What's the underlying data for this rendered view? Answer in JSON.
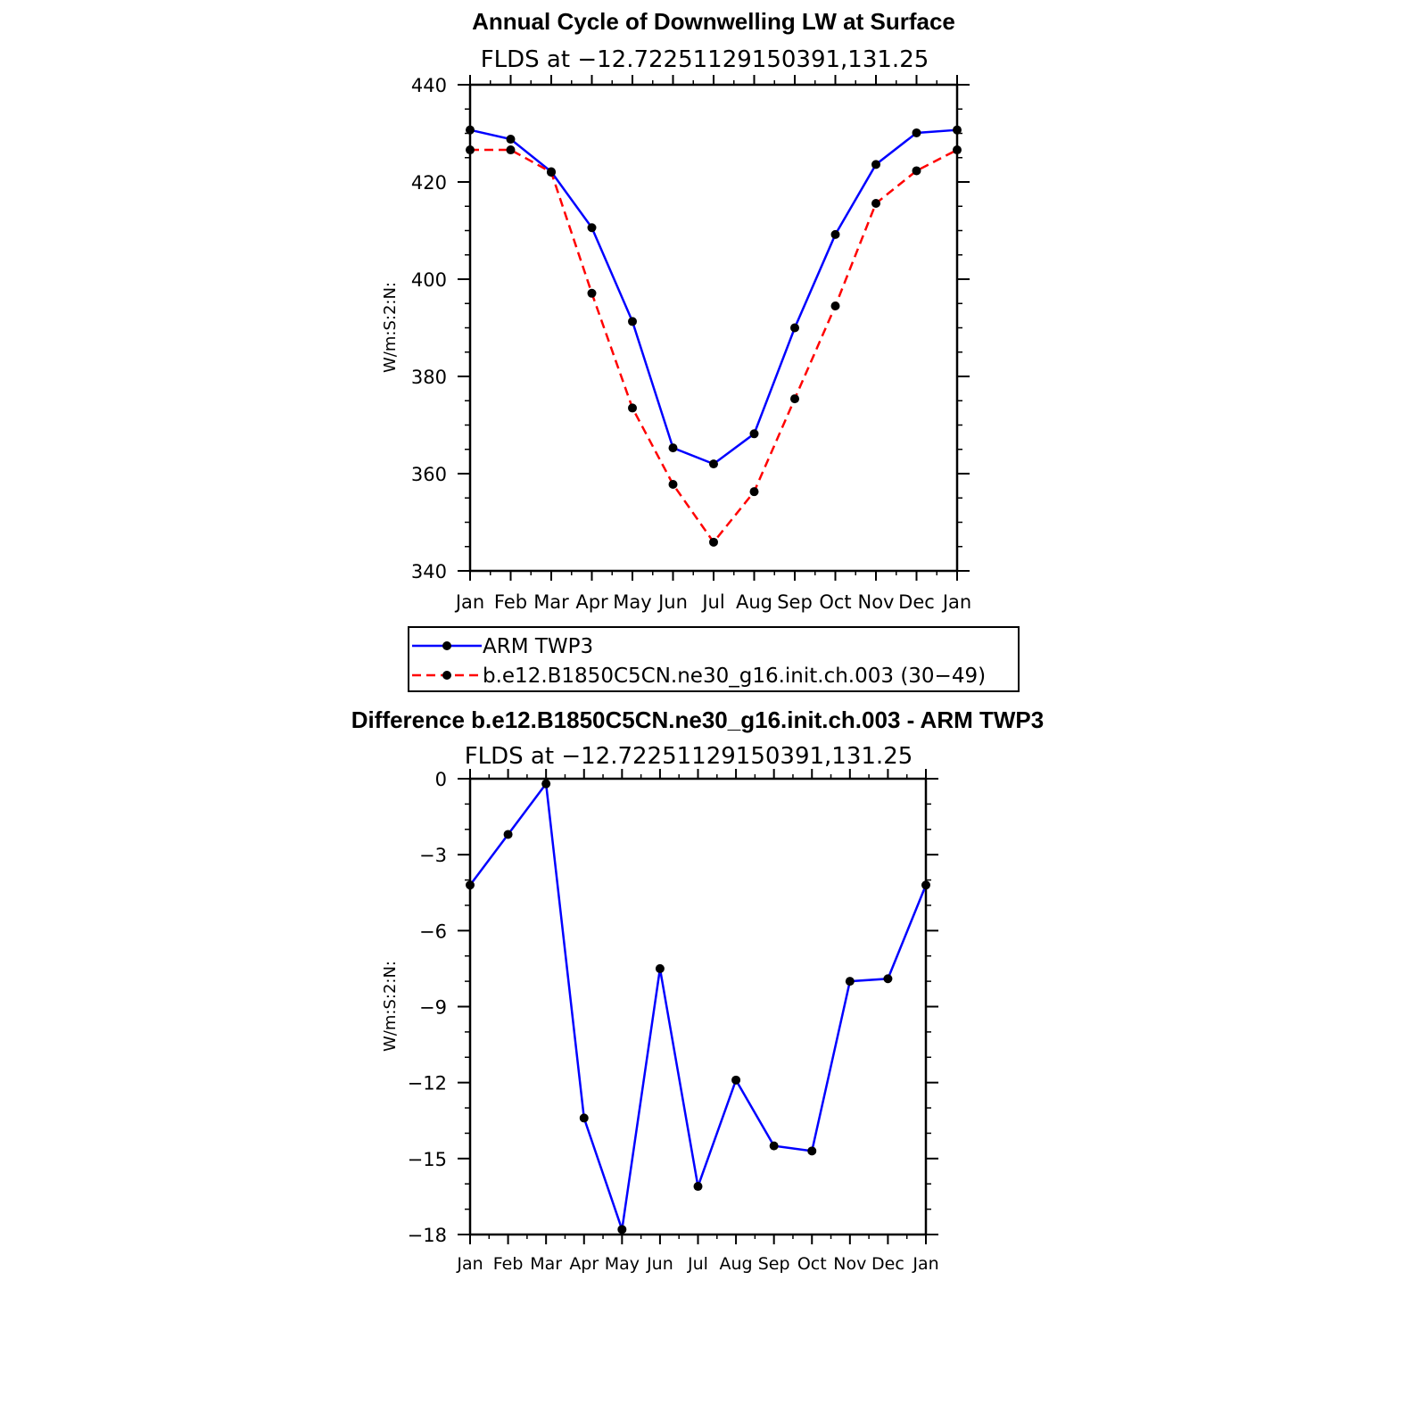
{
  "chart_data": [
    {
      "type": "line",
      "title": "Annual Cycle of Downwelling LW at Surface",
      "subtitle": "FLDS at −12.72251129150391,131.25",
      "ylabel": "W/m:S:2:N:",
      "categories": [
        "Jan",
        "Feb",
        "Mar",
        "Apr",
        "May",
        "Jun",
        "Jul",
        "Aug",
        "Sep",
        "Oct",
        "Nov",
        "Dec",
        "Jan"
      ],
      "ylim": [
        340,
        440
      ],
      "yticks": [
        340,
        360,
        380,
        400,
        420,
        440
      ],
      "series": [
        {
          "name": "ARM TWP3",
          "color": "#0000ff",
          "dash": "solid",
          "values": [
            430.7,
            428.8,
            422.1,
            410.6,
            391.3,
            365.3,
            362.0,
            368.2,
            390.0,
            409.2,
            423.6,
            430.1,
            430.7
          ]
        },
        {
          "name": "b.e12.B1850C5CN.ne30_g16.init.ch.003 (30−49)",
          "color": "#ff0000",
          "dash": "dashed",
          "values": [
            426.6,
            426.6,
            422.0,
            397.1,
            373.5,
            357.8,
            345.9,
            356.3,
            375.4,
            394.5,
            415.6,
            422.3,
            426.6
          ]
        }
      ]
    },
    {
      "type": "line",
      "title": "Difference b.e12.B1850C5CN.ne30_g16.init.ch.003 - ARM TWP3",
      "subtitle": "FLDS at −12.72251129150391,131.25",
      "ylabel": "W/m:S:2:N:",
      "categories": [
        "Jan",
        "Feb",
        "Mar",
        "Apr",
        "May",
        "Jun",
        "Jul",
        "Aug",
        "Sep",
        "Oct",
        "Nov",
        "Dec",
        "Jan"
      ],
      "ylim": [
        -18,
        0
      ],
      "yticks": [
        0,
        -3,
        -6,
        -9,
        -12,
        -15,
        -18
      ],
      "ytick_labels": [
        "0",
        "−3",
        "−6",
        "−9",
        "−12",
        "−15",
        "−18"
      ],
      "series": [
        {
          "color": "#0000ff",
          "dash": "solid",
          "values": [
            -4.2,
            -2.2,
            -0.2,
            -13.4,
            -17.8,
            -7.5,
            -16.1,
            -11.9,
            -14.5,
            -14.7,
            -8.0,
            -7.9,
            -4.2
          ]
        }
      ]
    }
  ]
}
